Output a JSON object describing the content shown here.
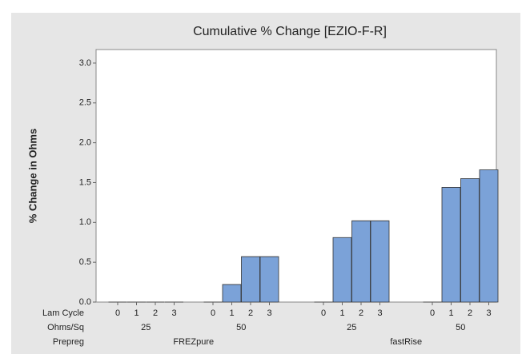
{
  "chart_data": {
    "type": "bar",
    "title": "Cumulative % Change [EZIO-F-R]",
    "y_label": "% Change in Ohms",
    "categories": [
      "0",
      "1",
      "2",
      "3",
      "0",
      "1",
      "2",
      "3",
      "0",
      "1",
      "2",
      "3",
      "0",
      "1",
      "2",
      "3"
    ],
    "values": [
      0,
      0,
      0,
      0,
      0,
      0.22,
      0.57,
      0.57,
      0,
      0.81,
      1.02,
      1.02,
      0,
      1.44,
      1.55,
      1.66
    ],
    "color": "#7ba2d8",
    "x_levels": [
      {
        "name": "Lam Cycle"
      },
      {
        "name": "Ohms/Sq",
        "labels": [
          "25",
          "50",
          "25",
          "50"
        ]
      },
      {
        "name": "Prepreg",
        "labels": [
          "FREZpure",
          "fastRise"
        ]
      }
    ],
    "ylim": [
      0,
      3.17
    ],
    "yticks": [
      {
        "value": 0,
        "label": "0.0"
      },
      {
        "value": 0.5,
        "label": "0.5"
      },
      {
        "value": 1,
        "label": "1.0"
      },
      {
        "value": 1.5,
        "label": "1.5"
      },
      {
        "value": 2,
        "label": "2.0"
      },
      {
        "value": 2.5,
        "label": "2.5"
      },
      {
        "value": 3,
        "label": "3.0"
      }
    ]
  }
}
